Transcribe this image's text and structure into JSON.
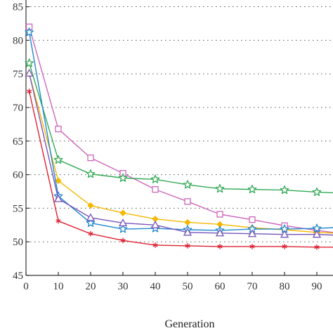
{
  "chart_data": {
    "type": "line",
    "title": "",
    "xlabel": "Generation",
    "ylabel": "",
    "xlim": [
      0,
      95
    ],
    "ylim": [
      45,
      86
    ],
    "x_ticks": [
      0,
      10,
      20,
      30,
      40,
      50,
      60,
      70,
      80,
      90
    ],
    "x_tick_labels": [
      "0",
      "10",
      "20",
      "30",
      "40",
      "50",
      "60",
      "70",
      "80",
      "90"
    ],
    "y_ticks": [
      45,
      50,
      55,
      60,
      65,
      70,
      75,
      80,
      85
    ],
    "y_tick_labels": [
      "45",
      "50",
      "55",
      "60",
      "65",
      "70",
      "75",
      "80",
      "85"
    ],
    "grid": {
      "horizontal": "dotted",
      "vertical": false
    },
    "x": [
      1,
      10,
      20,
      30,
      40,
      50,
      60,
      70,
      80,
      90,
      95
    ],
    "series": [
      {
        "color": "#cc66bb",
        "marker": "square",
        "values": [
          82.0,
          66.8,
          62.5,
          60.2,
          57.8,
          56.0,
          54.1,
          53.3,
          52.4,
          51.7,
          51.4
        ]
      },
      {
        "color": "#33aa55",
        "marker": "star",
        "values": [
          76.6,
          62.2,
          60.1,
          59.5,
          59.3,
          58.5,
          57.9,
          57.8,
          57.7,
          57.4,
          57.3
        ]
      },
      {
        "color": "#f5b800",
        "marker": "diamond",
        "values": [
          75.0,
          59.1,
          55.4,
          54.3,
          53.4,
          52.9,
          52.6,
          52.1,
          51.8,
          51.4,
          51.3
        ]
      },
      {
        "color": "#2288cc",
        "marker": "star",
        "values": [
          81.2,
          56.8,
          52.8,
          51.9,
          52.0,
          51.8,
          51.7,
          51.9,
          51.9,
          52.0,
          52.1
        ]
      },
      {
        "color": "#7755bb",
        "marker": "triangle",
        "values": [
          75.1,
          56.4,
          53.6,
          52.8,
          52.5,
          51.4,
          51.3,
          51.2,
          51.1,
          51.1,
          51.0
        ]
      },
      {
        "color": "#dd2233",
        "marker": "asterisk",
        "values": [
          72.4,
          53.1,
          51.2,
          50.2,
          49.5,
          49.4,
          49.3,
          49.3,
          49.3,
          49.2,
          49.2
        ]
      }
    ]
  }
}
